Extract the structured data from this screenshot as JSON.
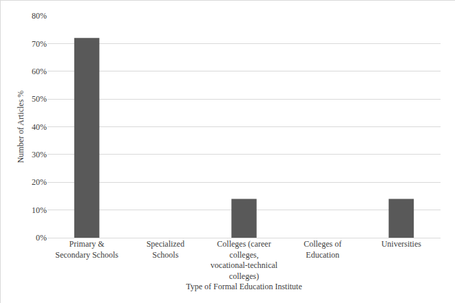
{
  "chart_data": {
    "type": "bar",
    "categories": [
      "Primary & Secondary Schools",
      "Specialized Schools",
      "Colleges (career colleges, vocational-technical colleges)",
      "Colleges of Education",
      "Universities"
    ],
    "values": [
      72,
      0,
      14,
      0,
      14
    ],
    "color": "#595959",
    "x_label": "Type of Formal Education Institute",
    "y_label": "Number of Articles %",
    "ylim": [
      0,
      80
    ],
    "yticks": [
      {
        "value": 0,
        "label": "0%"
      },
      {
        "value": 10,
        "label": "10%"
      },
      {
        "value": 20,
        "label": "20%"
      },
      {
        "value": 30,
        "label": "30%"
      },
      {
        "value": 40,
        "label": "40%"
      },
      {
        "value": 50,
        "label": "50%"
      },
      {
        "value": 60,
        "label": "60%"
      },
      {
        "value": 70,
        "label": "70%"
      },
      {
        "value": 80,
        "label": "80%"
      }
    ],
    "grid": true
  }
}
